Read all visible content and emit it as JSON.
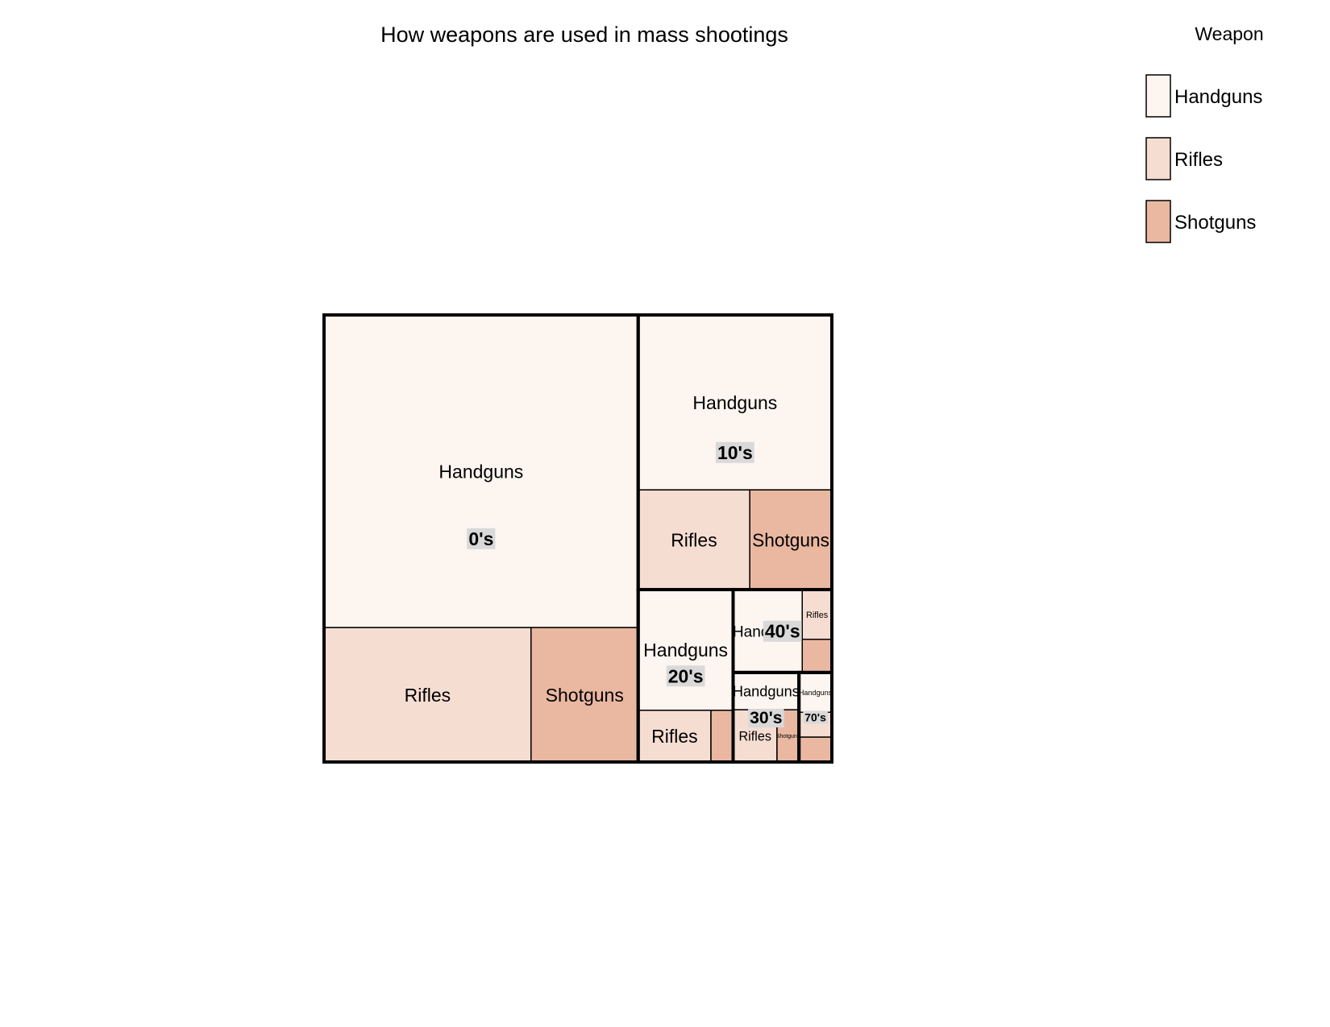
{
  "chart_data": {
    "type": "treemap",
    "title": "How weapons are used in mass shootings",
    "legend": {
      "title": "Weapon",
      "placement": "top-right",
      "entries": [
        "Handguns",
        "Rifles",
        "Shotguns"
      ]
    },
    "colors": {
      "Handguns": "#fcf5f0",
      "Rifles": "#f6ddd2",
      "Shotguns": "#eab8a1",
      "group_label_bg": "#d9d9d9",
      "border": "#000000"
    },
    "groups": [
      {
        "name": "0's",
        "items": [
          {
            "weapon": "Handguns",
            "label": "Handguns",
            "value": 60.0
          },
          {
            "weapon": "Rifles",
            "label": "Rifles",
            "value": 17.0
          },
          {
            "weapon": "Shotguns",
            "label": "Shotguns",
            "value": 8.8
          }
        ]
      },
      {
        "name": "10's",
        "items": [
          {
            "weapon": "Handguns",
            "label": "Handguns",
            "value": 20.7
          },
          {
            "weapon": "Rifles",
            "label": "Rifles",
            "value": 6.8
          },
          {
            "weapon": "Shotguns",
            "label": "Shotguns",
            "value": 5.0
          }
        ]
      },
      {
        "name": "20's",
        "items": [
          {
            "weapon": "Handguns",
            "label": "Handguns",
            "value": 7.0
          },
          {
            "weapon": "Rifles",
            "label": "Rifles",
            "value": 2.3
          },
          {
            "weapon": "Shotguns",
            "label": "",
            "value": 0.7
          }
        ]
      },
      {
        "name": "40's",
        "items": [
          {
            "weapon": "Handguns",
            "label": "Handguns",
            "value": 3.5
          },
          {
            "weapon": "Rifles",
            "label": "Rifles",
            "value": 0.9
          },
          {
            "weapon": "Shotguns",
            "label": "",
            "value": 0.6
          }
        ]
      },
      {
        "name": "30's",
        "items": [
          {
            "weapon": "Handguns",
            "label": "Handguns",
            "value": 1.5
          },
          {
            "weapon": "Rifles",
            "label": "Rifles",
            "value": 1.4
          },
          {
            "weapon": "Shotguns",
            "label": "Shotguns",
            "value": 0.7
          }
        ]
      },
      {
        "name": "70's",
        "items": [
          {
            "weapon": "Handguns",
            "label": "Handguns",
            "value": 0.8
          },
          {
            "weapon": "Rifles",
            "label": "",
            "value": 0.5
          },
          {
            "weapon": "Shotguns",
            "label": "",
            "value": 0.5
          }
        ]
      }
    ]
  }
}
